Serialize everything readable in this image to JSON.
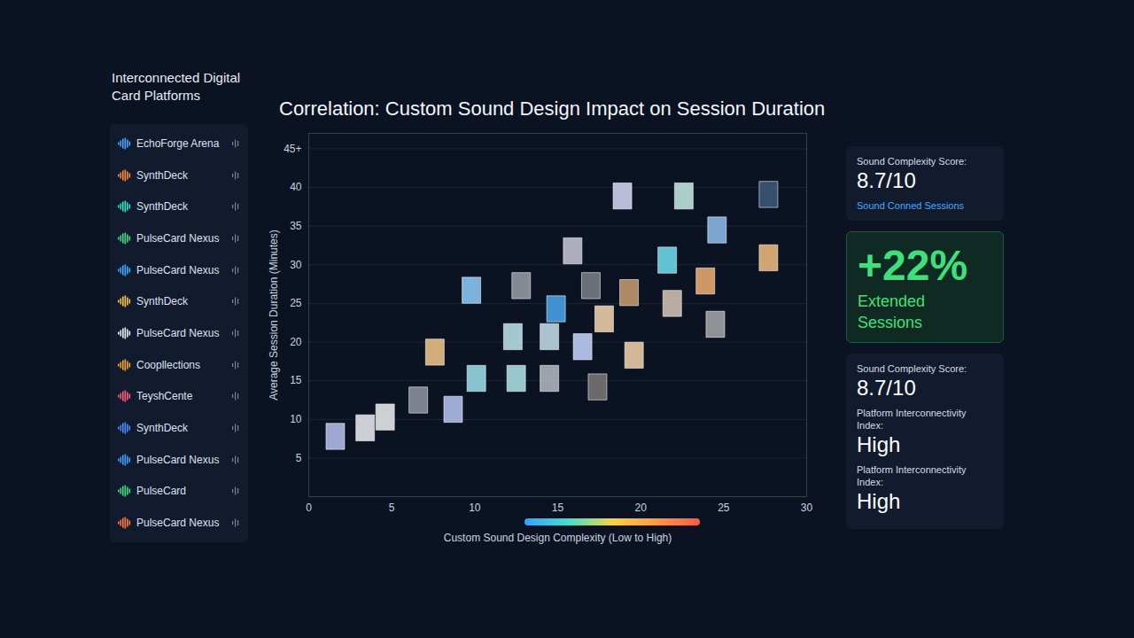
{
  "sidebar": {
    "title": "Interconnected Digital Card Platforms",
    "platforms": [
      {
        "name": "EchoForge Arena",
        "color": "#4aa3ff"
      },
      {
        "name": "SynthDeck",
        "color": "#ff8a3d"
      },
      {
        "name": "SynthDeck",
        "color": "#2fe0c8"
      },
      {
        "name": "PulseCard Nexus",
        "color": "#3ddc84"
      },
      {
        "name": "PulseCard Nexus",
        "color": "#3aa8ff"
      },
      {
        "name": "SynthDeck",
        "color": "#f5c542"
      },
      {
        "name": "PulseCard Nexus",
        "color": "#e8eef8"
      },
      {
        "name": "Coopllections",
        "color": "#f5a623"
      },
      {
        "name": "TeyshCente",
        "color": "#ff5a7a"
      },
      {
        "name": "SynthDeck",
        "color": "#4a8cff"
      },
      {
        "name": "PulseCard Nexus",
        "color": "#3d9bff"
      },
      {
        "name": "PulseCard",
        "color": "#3ddc84"
      },
      {
        "name": "PulseCard Nexus",
        "color": "#ff7a3d"
      }
    ]
  },
  "chart_data": {
    "type": "scatter",
    "title": "Correlation: Custom Sound Design Impact on Session Duration",
    "x_label": "Custom Sound Design Complexity (Low to High)",
    "y_label": "Average Session Duration (Minutes)",
    "x": [
      1.6,
      3.4,
      4.6,
      6.6,
      8.7,
      7.6,
      9.8,
      10.1,
      12.3,
      12.8,
      12.5,
      14.5,
      14.5,
      14.9,
      15.9,
      16.5,
      17.0,
      17.8,
      17.4,
      19.3,
      19.6,
      18.9,
      21.6,
      21.9,
      22.6,
      23.9,
      24.5,
      24.6,
      27.7,
      27.7
    ],
    "values": [
      7.8,
      8.9,
      10.3,
      12.5,
      11.3,
      18.7,
      26.7,
      15.3,
      20.7,
      27.3,
      15.3,
      15.3,
      20.7,
      24.3,
      31.8,
      19.4,
      27.3,
      23.0,
      14.2,
      26.4,
      18.3,
      38.9,
      30.6,
      25.0,
      38.9,
      27.9,
      22.3,
      34.5,
      30.9,
      39.1
    ],
    "colors": [
      "#b9c3f0",
      "#f0f0f5",
      "#f2f2f2",
      "#8f96a0",
      "#b9c8f5",
      "#f5c98a",
      "#8fd0ff",
      "#9fe3ef",
      "#bfe8f0",
      "#9aa0a8",
      "#b0e8ea",
      "#b8bcc4",
      "#c8e2f0",
      "#4aa8f0",
      "#c9c9d8",
      "#c8d8ff",
      "#7d8088",
      "#f8d8b0",
      "#7d7a78",
      "#c8a070",
      "#f6d6a8",
      "#d8dcf8",
      "#6fe0f0",
      "#d8c8b8",
      "#c8f0e8",
      "#f0b070",
      "#a8a8ac",
      "#8fc0f0",
      "#f5c080",
      "#3d5a7a"
    ],
    "marker": "card",
    "xlim": [
      0,
      30
    ],
    "ylim": [
      0,
      47
    ],
    "xticks": [
      0,
      5,
      10,
      15,
      20,
      25,
      30
    ],
    "yticks": [
      5,
      10,
      15,
      20,
      25,
      30,
      35,
      40,
      {
        "value": 45,
        "label": "45+"
      }
    ],
    "grid": true
  },
  "panels": [
    {
      "items": [
        {
          "label": "Sound Complexity Score:",
          "value": "8.7/10"
        }
      ],
      "note": "Sound Conned Sessions"
    },
    {
      "headline": "+22%",
      "caption": "Extended Sessions"
    },
    {
      "items": [
        {
          "label": "Sound Complexity Score:",
          "value": "8.7/10"
        },
        {
          "label": "Platform Interconnectivity Index:",
          "value": "High"
        },
        {
          "label": "Platform Interconnectivity Index:",
          "value": "High"
        }
      ]
    }
  ]
}
